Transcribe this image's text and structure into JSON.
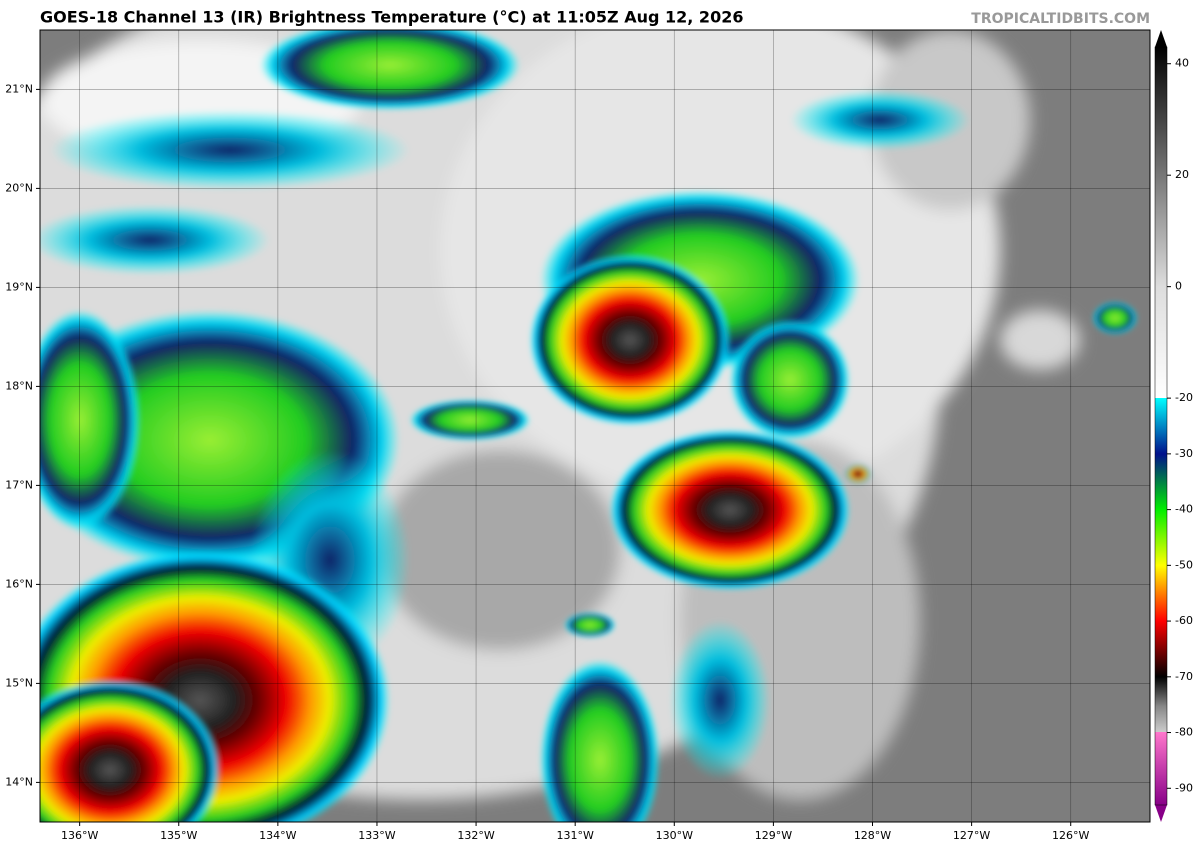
{
  "title": "GOES-18 Channel 13 (IR) Brightness Temperature (°C) at 11:05Z Aug 12, 2026",
  "credit": "TROPICALTIDBITS.COM",
  "map": {
    "xlim": [
      -136.4,
      -125.2
    ],
    "ylim": [
      13.6,
      21.6
    ],
    "lon_ticks": [
      {
        "value": -136,
        "label": "136°W"
      },
      {
        "value": -135,
        "label": "135°W"
      },
      {
        "value": -134,
        "label": "134°W"
      },
      {
        "value": -133,
        "label": "133°W"
      },
      {
        "value": -132,
        "label": "132°W"
      },
      {
        "value": -131,
        "label": "131°W"
      },
      {
        "value": -130,
        "label": "130°W"
      },
      {
        "value": -129,
        "label": "129°W"
      },
      {
        "value": -128,
        "label": "128°W"
      },
      {
        "value": -127,
        "label": "127°W"
      },
      {
        "value": -126,
        "label": "126°W"
      }
    ],
    "lat_ticks": [
      {
        "value": 14,
        "label": "14°N"
      },
      {
        "value": 15,
        "label": "15°N"
      },
      {
        "value": 16,
        "label": "16°N"
      },
      {
        "value": 17,
        "label": "17°N"
      },
      {
        "value": 18,
        "label": "18°N"
      },
      {
        "value": 19,
        "label": "19°N"
      },
      {
        "value": 20,
        "label": "20°N"
      },
      {
        "value": 21,
        "label": "21°N"
      }
    ]
  },
  "colorbar": {
    "lim": [
      -93,
      43
    ],
    "ticks": [
      40,
      20,
      0,
      -20,
      -30,
      -40,
      -50,
      -60,
      -70,
      -80,
      -90
    ]
  }
}
